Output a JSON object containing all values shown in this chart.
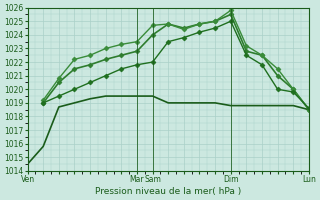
{
  "title": "",
  "xlabel": "Pression niveau de la mer( hPa )",
  "ylabel": "",
  "bg_color": "#cce8e0",
  "grid_color": "#aad0c8",
  "line_color_dark": "#1a5c1a",
  "ylim": [
    1014,
    1026
  ],
  "yticks": [
    1014,
    1015,
    1016,
    1017,
    1018,
    1019,
    1020,
    1021,
    1022,
    1023,
    1024,
    1025,
    1026
  ],
  "xtick_labels": [
    "Ven",
    "",
    "",
    "",
    "",
    "",
    "",
    "Mar",
    "Sam",
    "",
    "",
    "",
    "",
    "Dim",
    "",
    "",
    "",
    "",
    "Lun"
  ],
  "xtick_positions": [
    0,
    1,
    2,
    3,
    4,
    5,
    6,
    7,
    8,
    9,
    10,
    11,
    12,
    13,
    14,
    15,
    16,
    17,
    18
  ],
  "xtick_vlines": [
    0,
    7,
    8,
    13,
    18
  ],
  "series": [
    {
      "x": [
        0,
        1,
        2,
        3,
        4,
        5,
        6,
        7,
        8,
        9,
        10,
        11,
        12,
        13,
        14,
        15,
        16,
        17,
        18
      ],
      "y": [
        1014.5,
        1015.8,
        1018.7,
        1019.0,
        1019.3,
        1019.5,
        1019.5,
        1019.5,
        1019.5,
        1019.0,
        1019.0,
        1019.0,
        1019.0,
        1018.8,
        1018.8,
        1018.8,
        1018.8,
        1018.8,
        1018.5
      ],
      "color": "#1a5c1a",
      "marker": "",
      "markersize": 0,
      "lw": 1.2,
      "ls": "-"
    },
    {
      "x": [
        1,
        2,
        3,
        4,
        5,
        6,
        7,
        8,
        9,
        10,
        11,
        12,
        13,
        14,
        15,
        16,
        17,
        18
      ],
      "y": [
        1019.0,
        1020.5,
        1021.5,
        1021.8,
        1022.2,
        1022.5,
        1022.8,
        1024.0,
        1024.8,
        1024.5,
        1024.8,
        1025.0,
        1025.5,
        1022.8,
        1022.5,
        1021.0,
        1020.0,
        1018.5
      ],
      "color": "#2e7d2e",
      "marker": "D",
      "markersize": 2.5,
      "lw": 1.2,
      "ls": "-"
    },
    {
      "x": [
        1,
        2,
        3,
        4,
        5,
        6,
        7,
        8,
        9,
        10,
        11,
        12,
        13,
        14,
        15,
        16,
        17,
        18
      ],
      "y": [
        1019.2,
        1020.8,
        1022.2,
        1022.5,
        1023.0,
        1023.3,
        1023.5,
        1024.7,
        1024.8,
        1024.4,
        1024.8,
        1025.0,
        1025.8,
        1023.2,
        1022.5,
        1021.5,
        1020.0,
        1018.5
      ],
      "color": "#3a8c3a",
      "marker": "D",
      "markersize": 2.5,
      "lw": 1.0,
      "ls": "-"
    },
    {
      "x": [
        1,
        2,
        3,
        4,
        5,
        6,
        7,
        8,
        9,
        10,
        11,
        12,
        13,
        14,
        15,
        16,
        17,
        18
      ],
      "y": [
        1019.0,
        1019.5,
        1020.0,
        1020.5,
        1021.0,
        1021.5,
        1021.8,
        1022.0,
        1023.5,
        1023.8,
        1024.2,
        1024.5,
        1025.0,
        1022.5,
        1021.8,
        1020.0,
        1019.8,
        1018.6
      ],
      "color": "#1f6f1f",
      "marker": "D",
      "markersize": 2.5,
      "lw": 1.0,
      "ls": "-"
    }
  ]
}
